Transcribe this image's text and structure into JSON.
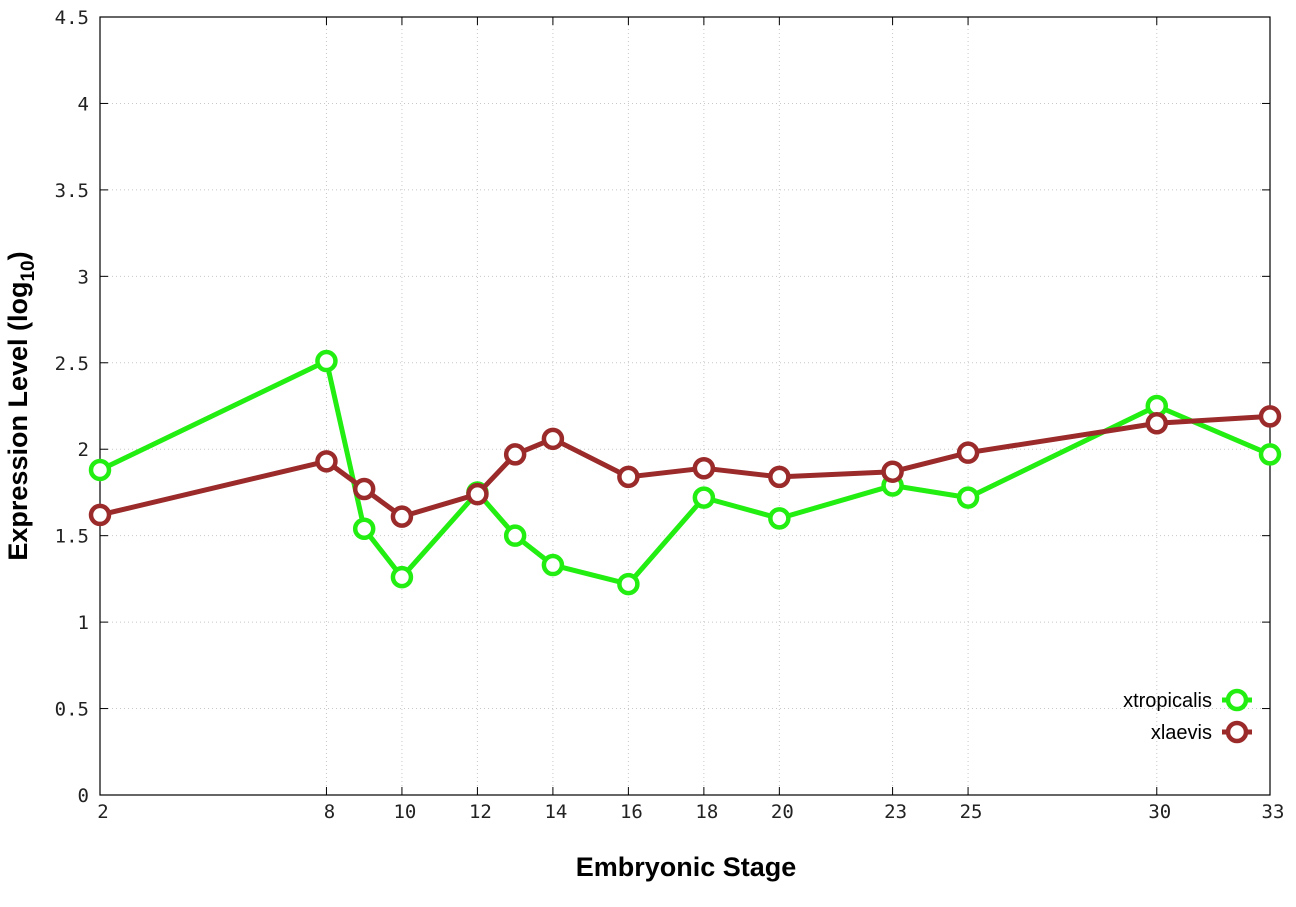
{
  "chart_data": {
    "type": "line",
    "xlabel": "Embryonic Stage",
    "ylabel": "Expression Level (log",
    "ylabel_subscript": "10",
    "ylabel_suffix": ")",
    "x_ticks": [
      "2",
      "8",
      "10",
      "12",
      "14",
      "16",
      "18",
      "20",
      "23",
      "25",
      "30",
      "33"
    ],
    "y_ticks": [
      "0",
      "0.5",
      "1",
      "1.5",
      "2",
      "2.5",
      "3",
      "3.5",
      "4",
      "4.5"
    ],
    "xlim": [
      2,
      33
    ],
    "ylim": [
      0,
      4.5
    ],
    "grid": true,
    "legend_position": "bottom-right",
    "x": [
      2,
      8,
      9,
      10,
      12,
      13,
      14,
      16,
      18,
      20,
      23,
      25,
      30,
      33
    ],
    "series": [
      {
        "name": "xtropicalis",
        "color": "#22ee11",
        "values": [
          1.88,
          2.51,
          1.54,
          1.26,
          1.75,
          1.5,
          1.33,
          1.22,
          1.72,
          1.6,
          1.79,
          1.72,
          2.25,
          1.97
        ]
      },
      {
        "name": "xlaevis",
        "color": "#9b2a2a",
        "values": [
          1.62,
          1.93,
          1.77,
          1.61,
          1.74,
          1.97,
          2.06,
          1.84,
          1.89,
          1.84,
          1.87,
          1.98,
          2.15,
          2.19
        ]
      }
    ]
  }
}
